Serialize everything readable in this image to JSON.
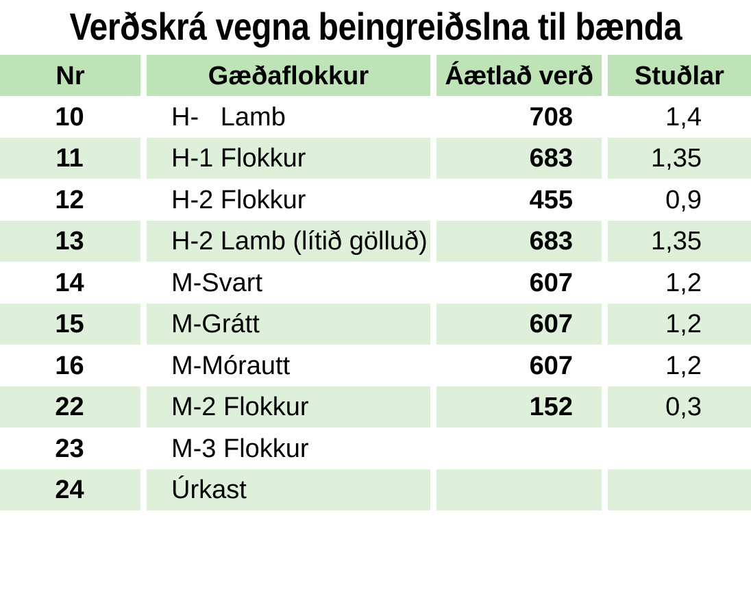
{
  "title": "Verðskrá vegna beingreiðslna til bænda",
  "table": {
    "headers": {
      "nr": "Nr",
      "quality": "Gæðaflokkur",
      "price": "Áætlað verð",
      "coefficient": "Stuðlar"
    },
    "rows": [
      {
        "nr": "10",
        "quality": "H-   Lamb",
        "price": "708",
        "coefficient": "1,4"
      },
      {
        "nr": "11",
        "quality": "H-1 Flokkur",
        "price": "683",
        "coefficient": "1,35"
      },
      {
        "nr": "12",
        "quality": "H-2 Flokkur",
        "price": "455",
        "coefficient": "0,9"
      },
      {
        "nr": "13",
        "quality": "H-2 Lamb (lítið gölluð)",
        "price": "683",
        "coefficient": "1,35"
      },
      {
        "nr": "14",
        "quality": "M-Svart",
        "price": "607",
        "coefficient": "1,2"
      },
      {
        "nr": "15",
        "quality": "M-Grátt",
        "price": "607",
        "coefficient": "1,2"
      },
      {
        "nr": "16",
        "quality": "M-Mórautt",
        "price": "607",
        "coefficient": "1,2"
      },
      {
        "nr": "22",
        "quality": "M-2 Flokkur",
        "price": "152",
        "coefficient": "0,3"
      },
      {
        "nr": "23",
        "quality": "M-3 Flokkur",
        "price": "",
        "coefficient": ""
      },
      {
        "nr": "24",
        "quality": "Úrkast",
        "price": "",
        "coefficient": ""
      }
    ]
  },
  "colors": {
    "header_fill": "#bde3b6",
    "band_fill": "#def0da"
  }
}
